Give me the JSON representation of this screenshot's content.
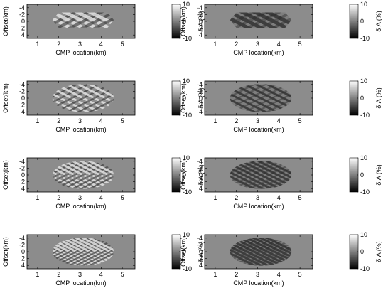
{
  "chart_data": {
    "type": "heatmap",
    "xlabel": "CMP location(km)",
    "ylabel": "Offset(km)",
    "x_ticks": [
      1,
      2,
      3,
      4,
      5
    ],
    "y_ticks": [
      -4,
      -2,
      0,
      2,
      4
    ],
    "xlim": [
      0.5,
      5.6
    ],
    "ylim": [
      -5,
      5
    ],
    "colorbar": {
      "label": "δ A (%)",
      "ticks": [
        10,
        0,
        -10
      ],
      "range": [
        -10,
        10
      ],
      "colormap": "gray"
    },
    "panels": [
      {
        "row": 1,
        "column": "left"
      },
      {
        "row": 1,
        "column": "right"
      },
      {
        "row": 2,
        "column": "left"
      },
      {
        "row": 2,
        "column": "right"
      },
      {
        "row": 3,
        "column": "left"
      },
      {
        "row": 3,
        "column": "right"
      },
      {
        "row": 4,
        "column": "left"
      },
      {
        "row": 4,
        "column": "right"
      }
    ]
  }
}
